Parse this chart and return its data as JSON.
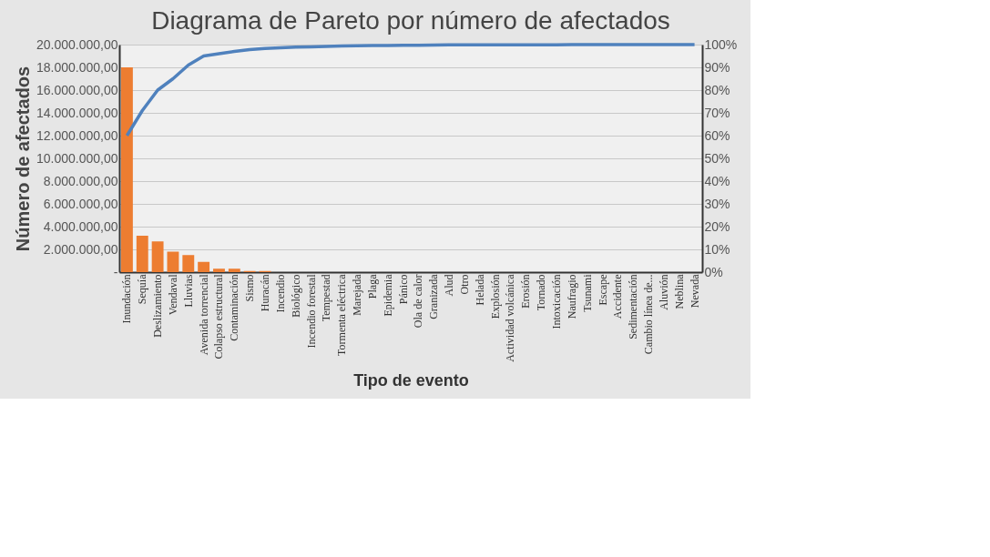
{
  "chart_data": {
    "type": "bar",
    "title": "Diagrama de Pareto por número de afectados",
    "xlabel": "Tipo de evento",
    "ylabel": "Número de afectados",
    "categories": [
      "Inundación",
      "Sequía",
      "Deslizamiento",
      "Vendaval",
      "Lluvias",
      "Avenida torrencial",
      "Colapso estructural",
      "Contaminación",
      "Sismo",
      "Huracán",
      "Incendio",
      "Biológico",
      "Incendio forestal",
      "Tempestad",
      "Tormenta eléctrica",
      "Marejada",
      "Plaga",
      "Epidemia",
      "Pánico",
      "Ola de calor",
      "Granizada",
      "Alud",
      "Otro",
      "Helada",
      "Explosión",
      "Actividad volcánica",
      "Erosión",
      "Tornado",
      "Intoxicación",
      "Naufragio",
      "Tsunami",
      "Escape",
      "Accidente",
      "Sedimentación",
      "Cambio línea de...",
      "Aluvión",
      "Neblina",
      "Nevada"
    ],
    "series": [
      {
        "color": "#ed7d31",
        "values": [
          18000000,
          3200000,
          2700000,
          1800000,
          1500000,
          900000,
          300000,
          300000,
          100000,
          100000,
          0,
          0,
          0,
          0,
          0,
          0,
          0,
          0,
          0,
          0,
          0,
          0,
          0,
          0,
          0,
          0,
          0,
          0,
          0,
          0,
          0,
          0,
          0,
          0,
          0,
          0,
          0,
          0
        ]
      },
      {
        "type": "line",
        "axis": "y2",
        "color": "#4f81bd",
        "values": [
          60,
          71,
          80,
          85,
          91,
          95,
          96,
          97,
          97.8,
          98.3,
          98.6,
          98.9,
          99.0,
          99.2,
          99.4,
          99.5,
          99.6,
          99.6,
          99.7,
          99.7,
          99.8,
          99.9,
          99.9,
          99.9,
          99.9,
          99.9,
          99.9,
          99.9,
          99.9,
          100,
          100,
          100,
          100,
          100,
          100,
          100,
          100,
          100
        ]
      }
    ],
    "ylim": [
      0,
      20000000
    ],
    "yticks": [
      {
        "value": 0,
        "label": "-"
      },
      {
        "value": 2000000,
        "label": "2.000.000,00"
      },
      {
        "value": 4000000,
        "label": "4.000.000,00"
      },
      {
        "value": 6000000,
        "label": "6.000.000,00"
      },
      {
        "value": 8000000,
        "label": "8.000.000,00"
      },
      {
        "value": 10000000,
        "label": "10.000.000,00"
      },
      {
        "value": 12000000,
        "label": "12.000.000,00"
      },
      {
        "value": 14000000,
        "label": "14.000.000,00"
      },
      {
        "value": 16000000,
        "label": "16.000.000,00"
      },
      {
        "value": 18000000,
        "label": "18.000.000,00"
      },
      {
        "value": 20000000,
        "label": "20.000.000,00"
      }
    ],
    "y2lim": [
      0,
      100
    ],
    "y2ticks": [
      {
        "value": 0,
        "label": "0%"
      },
      {
        "value": 10,
        "label": "10%"
      },
      {
        "value": 20,
        "label": "20%"
      },
      {
        "value": 30,
        "label": "30%"
      },
      {
        "value": 40,
        "label": "40%"
      },
      {
        "value": 50,
        "label": "50%"
      },
      {
        "value": 60,
        "label": "60%"
      },
      {
        "value": 70,
        "label": "70%"
      },
      {
        "value": 80,
        "label": "80%"
      },
      {
        "value": 90,
        "label": "90%"
      },
      {
        "value": 100,
        "label": "100%"
      }
    ],
    "grid": "y"
  }
}
